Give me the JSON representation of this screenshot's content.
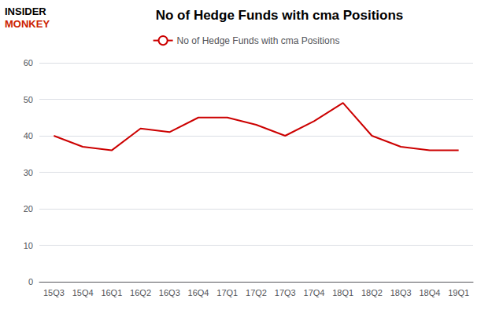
{
  "chart_data": {
    "type": "line",
    "title": "No of Hedge Funds with cma Positions",
    "categories": [
      "15Q3",
      "15Q4",
      "16Q1",
      "16Q2",
      "16Q3",
      "16Q4",
      "17Q1",
      "17Q2",
      "17Q3",
      "17Q4",
      "18Q1",
      "18Q2",
      "18Q3",
      "18Q4",
      "19Q1"
    ],
    "series": [
      {
        "name": "No of Hedge Funds with cma Positions",
        "color": "#cc0000",
        "values": [
          40,
          37,
          36,
          42,
          41,
          45,
          45,
          43,
          40,
          44,
          49,
          40,
          37,
          36,
          36
        ]
      }
    ],
    "ylim": [
      0,
      60
    ],
    "yticks": [
      0,
      10,
      20,
      30,
      40,
      50,
      60
    ],
    "grid": true,
    "legend": "top",
    "annotations": [
      {
        "text": "INSIDER",
        "color": "#000000"
      },
      {
        "text": "MONKEY",
        "color": "#cc2200"
      }
    ]
  }
}
